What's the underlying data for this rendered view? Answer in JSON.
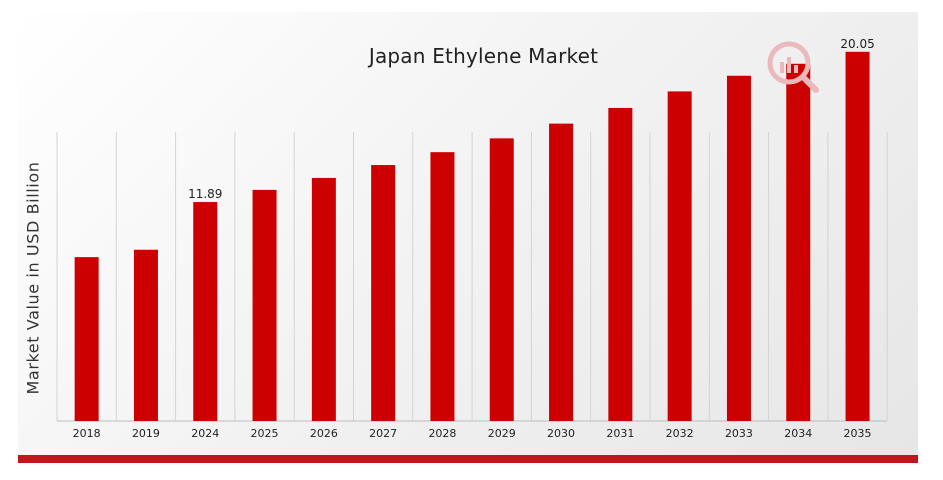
{
  "chart_data": {
    "type": "bar",
    "title": "Japan Ethylene Market",
    "xlabel": "",
    "ylabel": "Market Value in USD Billion",
    "categories": [
      "2018",
      "2019",
      "2024",
      "2025",
      "2026",
      "2027",
      "2028",
      "2029",
      "2030",
      "2031",
      "2032",
      "2033",
      "2034",
      "2035"
    ],
    "values": [
      8.9,
      9.3,
      11.89,
      12.55,
      13.2,
      13.9,
      14.6,
      15.35,
      16.15,
      17.0,
      17.9,
      18.75,
      19.4,
      20.05
    ],
    "data_labels": {
      "2024": "11.89",
      "2035": "20.05"
    },
    "ylim": [
      0,
      20.8
    ],
    "grid": "vertical",
    "legend": "none",
    "colors": {
      "bar": "#cc0000",
      "grid": "#d4d4d4",
      "axis": "#bdbdbd",
      "band": "#c4141c"
    }
  },
  "logo": {
    "icon": "market-research-logo-icon"
  }
}
